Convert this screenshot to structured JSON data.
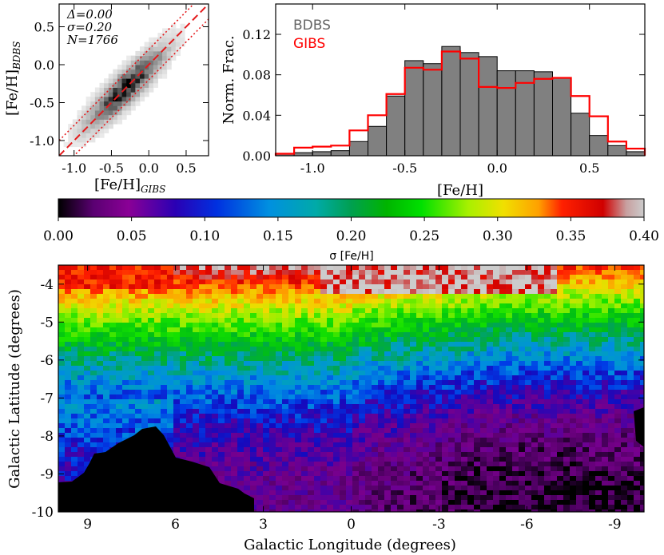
{
  "chart_data": [
    {
      "type": "heatmap",
      "name": "comparison-scatter",
      "xlabel": "[Fe/H]",
      "xlabel_sub": "GIBS",
      "ylabel": "[Fe/H]",
      "ylabel_sub": "BDBS",
      "xlim": [
        -1.2,
        0.8
      ],
      "ylim": [
        -1.2,
        0.8
      ],
      "xticks": [
        "-1.0",
        "-0.5",
        "0.0",
        "0.5"
      ],
      "yticks": [
        "-1.0",
        "-0.5",
        "0.0",
        "0.5"
      ],
      "stats": [
        "Δ=0.00",
        "σ=0.20",
        "N=1766"
      ],
      "lines": [
        {
          "name": "one-to-one",
          "style": "dashed",
          "offset": 0.0,
          "color": "#e41a1c"
        },
        {
          "name": "plus-sigma",
          "style": "dotted",
          "offset": 0.2,
          "color": "#e41a1c"
        },
        {
          "name": "minus-sigma",
          "style": "dotted",
          "offset": -0.2,
          "color": "#e41a1c"
        }
      ],
      "density_note": "2D density of stars concentrated along 1:1 line, peak near (-0.4, -0.4)"
    },
    {
      "type": "bar",
      "name": "metallicity-histogram",
      "xlabel": "[Fe/H]",
      "ylabel": "Norm. Frac.",
      "xlim": [
        -1.2,
        0.8
      ],
      "ylim": [
        0.0,
        0.15
      ],
      "xticks": [
        "-1.0",
        "-0.5",
        "0.0",
        "0.5"
      ],
      "yticks": [
        "0.00",
        "0.04",
        "0.08",
        "0.12"
      ],
      "bin_edges": [
        -1.2,
        -1.1,
        -1.0,
        -0.9,
        -0.8,
        -0.7,
        -0.6,
        -0.5,
        -0.4,
        -0.3,
        -0.2,
        -0.1,
        0.0,
        0.1,
        0.2,
        0.3,
        0.4,
        0.5,
        0.6,
        0.7,
        0.8
      ],
      "series": [
        {
          "name": "BDBS",
          "style": "filled",
          "color": "#808080",
          "values": [
            0.002,
            0.003,
            0.004,
            0.005,
            0.014,
            0.029,
            0.059,
            0.094,
            0.091,
            0.108,
            0.102,
            0.098,
            0.084,
            0.084,
            0.083,
            0.077,
            0.042,
            0.02,
            0.01,
            0.004
          ]
        },
        {
          "name": "GIBS",
          "style": "step",
          "color": "#ff0000",
          "values": [
            0.002,
            0.008,
            0.009,
            0.01,
            0.025,
            0.04,
            0.061,
            0.087,
            0.085,
            0.103,
            0.096,
            0.068,
            0.067,
            0.072,
            0.076,
            0.077,
            0.059,
            0.039,
            0.014,
            0.007
          ]
        }
      ]
    },
    {
      "type": "heatmap",
      "name": "sigma-map",
      "colorbar": {
        "label": "σ [Fe/H]",
        "range": [
          0.0,
          0.4
        ],
        "ticks": [
          "0.00",
          "0.05",
          "0.10",
          "0.15",
          "0.20",
          "0.25",
          "0.30",
          "0.35",
          "0.40"
        ],
        "colormap": "nipy_spectral"
      },
      "xlabel": "Galactic Longitude (degrees)",
      "ylabel": "Galactic Latitude (degrees)",
      "xlim": [
        10.0,
        -10.0
      ],
      "ylim": [
        -10.0,
        -3.5
      ],
      "xticks": [
        "9",
        "6",
        "3",
        "0",
        "-3",
        "-6",
        "-9"
      ],
      "yticks": [
        "-4",
        "-5",
        "-6",
        "-7",
        "-8",
        "-9",
        "-10"
      ],
      "trend": "σ decreases from ~0.35 near b=-4 to ~0.05 near b=-10; no-data region (black) at lower left"
    }
  ]
}
